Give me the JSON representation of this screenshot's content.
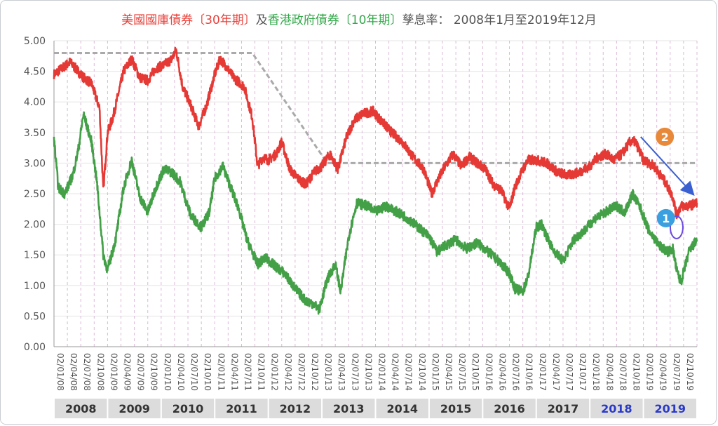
{
  "title": {
    "part_red": "美國國庫債券〔30年期〕",
    "part_mid": "及",
    "part_green": "香港政府債券〔10年期〕",
    "part_tail": "孳息率：  2008年1月至2019年12月"
  },
  "colors": {
    "us30": "#e53935",
    "hk10": "#43a047",
    "gray_line": "#aaaaaa",
    "arrow": "#3a5fd0",
    "badge1": "#3aa0e0",
    "badge2": "#e8893a",
    "year_band": "#dcdcdc",
    "year_text_dark": "#333333",
    "year_text_blue": "#2a3ac8"
  },
  "chart_data": {
    "type": "line",
    "ylim": [
      0,
      5
    ],
    "yticks": [
      "0.00",
      "0.50",
      "1.00",
      "1.50",
      "2.00",
      "2.50",
      "3.00",
      "3.50",
      "4.00",
      "4.50",
      "5.00"
    ],
    "x_tick_labels": [
      "02/01/08",
      "02/04/08",
      "02/07/08",
      "02/10/08",
      "02/01/09",
      "02/04/09",
      "02/07/09",
      "02/10/09",
      "02/01/10",
      "02/04/10",
      "02/07/10",
      "02/10/10",
      "02/01/11",
      "02/04/11",
      "02/07/11",
      "02/10/11",
      "02/01/12",
      "02/04/12",
      "02/07/12",
      "02/10/12",
      "02/01/13",
      "02/04/13",
      "02/07/13",
      "02/10/13",
      "02/01/14",
      "02/04/14",
      "02/07/14",
      "02/10/14",
      "02/01/15",
      "02/04/15",
      "02/07/15",
      "02/10/15",
      "02/01/16",
      "02/04/16",
      "02/07/16",
      "02/10/16",
      "02/01/17",
      "02/04/17",
      "02/07/17",
      "02/10/17",
      "02/01/18",
      "02/04/18",
      "02/07/18",
      "02/10/18",
      "02/01/19",
      "02/04/19",
      "02/07/19",
      "02/10/19"
    ],
    "years": [
      {
        "label": "2008",
        "highlight": false
      },
      {
        "label": "2009",
        "highlight": false
      },
      {
        "label": "2010",
        "highlight": false
      },
      {
        "label": "2011",
        "highlight": false
      },
      {
        "label": "2012",
        "highlight": false
      },
      {
        "label": "2013",
        "highlight": false
      },
      {
        "label": "2014",
        "highlight": false
      },
      {
        "label": "2015",
        "highlight": false
      },
      {
        "label": "2016",
        "highlight": false
      },
      {
        "label": "2017",
        "highlight": false
      },
      {
        "label": "2018",
        "highlight": true
      },
      {
        "label": "2019",
        "highlight": true
      }
    ],
    "series": [
      {
        "key": "us30",
        "x": [
          2008.0,
          2008.15,
          2008.3,
          2008.45,
          2008.55,
          2008.7,
          2008.85,
          2008.92,
          2009.0,
          2009.1,
          2009.3,
          2009.45,
          2009.6,
          2009.75,
          2009.9,
          2010.05,
          2010.2,
          2010.28,
          2010.4,
          2010.55,
          2010.7,
          2010.85,
          2011.0,
          2011.1,
          2011.2,
          2011.35,
          2011.55,
          2011.7,
          2011.8,
          2011.9,
          2012.0,
          2012.15,
          2012.25,
          2012.4,
          2012.55,
          2012.7,
          2012.85,
          2013.0,
          2013.15,
          2013.3,
          2013.45,
          2013.6,
          2013.75,
          2013.95,
          2014.1,
          2014.3,
          2014.5,
          2014.7,
          2014.9,
          2015.05,
          2015.15,
          2015.3,
          2015.45,
          2015.6,
          2015.75,
          2015.9,
          2016.05,
          2016.2,
          2016.35,
          2016.5,
          2016.6,
          2016.75,
          2016.85,
          2017.0,
          2017.2,
          2017.4,
          2017.6,
          2017.8,
          2018.0,
          2018.15,
          2018.3,
          2018.45,
          2018.6,
          2018.75,
          2018.85,
          2019.0,
          2019.2,
          2019.4,
          2019.55,
          2019.62,
          2019.7,
          2019.85,
          2020.0
        ],
        "y": [
          4.45,
          4.55,
          4.65,
          4.5,
          4.4,
          4.3,
          3.9,
          2.55,
          3.5,
          3.75,
          4.5,
          4.7,
          4.4,
          4.35,
          4.55,
          4.6,
          4.7,
          4.85,
          4.25,
          3.95,
          3.6,
          3.95,
          4.45,
          4.7,
          4.6,
          4.4,
          4.25,
          3.75,
          2.95,
          3.1,
          3.05,
          3.15,
          3.35,
          2.9,
          2.75,
          2.65,
          2.85,
          2.95,
          3.15,
          2.9,
          3.4,
          3.7,
          3.8,
          3.85,
          3.7,
          3.5,
          3.35,
          3.1,
          2.9,
          2.5,
          2.7,
          2.95,
          3.15,
          2.95,
          3.1,
          3.0,
          2.9,
          2.65,
          2.55,
          2.25,
          2.6,
          2.9,
          3.05,
          3.05,
          3.0,
          2.85,
          2.8,
          2.85,
          2.95,
          3.1,
          3.15,
          3.05,
          3.15,
          3.35,
          3.35,
          3.05,
          2.95,
          2.7,
          2.45,
          2.15,
          2.3,
          2.3,
          2.35
        ]
      },
      {
        "key": "hk10",
        "x": [
          2008.0,
          2008.08,
          2008.2,
          2008.35,
          2008.45,
          2008.55,
          2008.7,
          2008.8,
          2008.92,
          2009.0,
          2009.15,
          2009.3,
          2009.45,
          2009.6,
          2009.75,
          2009.9,
          2010.05,
          2010.2,
          2010.35,
          2010.55,
          2010.75,
          2010.9,
          2011.0,
          2011.15,
          2011.3,
          2011.45,
          2011.6,
          2011.8,
          2011.95,
          2012.15,
          2012.3,
          2012.5,
          2012.7,
          2012.85,
          2012.95,
          2013.1,
          2013.25,
          2013.35,
          2013.5,
          2013.65,
          2013.85,
          2014.0,
          2014.2,
          2014.4,
          2014.6,
          2014.8,
          2015.0,
          2015.15,
          2015.3,
          2015.5,
          2015.7,
          2015.9,
          2016.1,
          2016.3,
          2016.5,
          2016.6,
          2016.75,
          2016.85,
          2017.0,
          2017.1,
          2017.3,
          2017.5,
          2017.7,
          2017.9,
          2018.1,
          2018.3,
          2018.5,
          2018.65,
          2018.8,
          2018.95,
          2019.1,
          2019.3,
          2019.45,
          2019.55,
          2019.62,
          2019.7,
          2019.85,
          2020.0
        ],
        "y": [
          3.4,
          2.6,
          2.5,
          2.8,
          3.2,
          3.8,
          3.35,
          2.7,
          1.5,
          1.25,
          1.75,
          2.6,
          3.05,
          2.45,
          2.2,
          2.6,
          2.9,
          2.85,
          2.7,
          2.15,
          1.95,
          2.2,
          2.75,
          2.95,
          2.6,
          2.25,
          1.75,
          1.35,
          1.45,
          1.3,
          1.2,
          0.95,
          0.75,
          0.7,
          0.6,
          1.1,
          1.35,
          0.9,
          1.8,
          2.35,
          2.3,
          2.2,
          2.3,
          2.2,
          2.1,
          1.95,
          1.8,
          1.55,
          1.65,
          1.75,
          1.6,
          1.7,
          1.55,
          1.4,
          1.2,
          0.95,
          0.9,
          1.15,
          1.95,
          2.0,
          1.6,
          1.4,
          1.75,
          1.9,
          2.1,
          2.2,
          2.3,
          2.2,
          2.5,
          2.25,
          1.9,
          1.65,
          1.55,
          1.6,
          1.25,
          1.05,
          1.55,
          1.75
        ]
      }
    ],
    "reference_line": [
      {
        "x": 2008.0,
        "y": 4.8
      },
      {
        "x": 2011.7,
        "y": 4.8
      },
      {
        "x": 2013.1,
        "y": 3.0
      },
      {
        "x": 2020.0,
        "y": 3.0
      }
    ],
    "annotations": {
      "badge1": {
        "text": "1"
      },
      "badge2": {
        "text": "2"
      }
    }
  }
}
